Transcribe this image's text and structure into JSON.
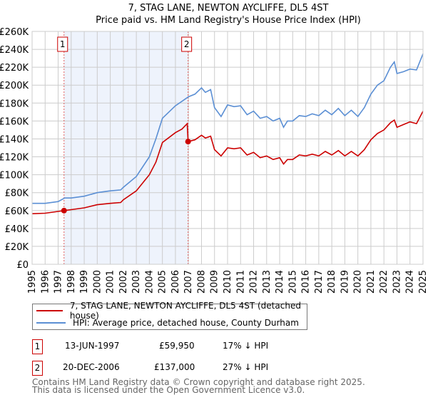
{
  "chart_data": {
    "type": "line",
    "title": "7, STAG LANE, NEWTON AYCLIFFE, DL5 4ST",
    "subtitle": "Price paid vs. HM Land Registry's House Price Index (HPI)",
    "xlabel": "",
    "ylabel": "",
    "xlim": [
      1995,
      2025
    ],
    "ylim": [
      0,
      260000
    ],
    "grid": true,
    "x_ticks": [
      "1995",
      "1996",
      "1997",
      "1998",
      "1999",
      "2000",
      "2001",
      "2002",
      "2003",
      "2004",
      "2005",
      "2006",
      "2007",
      "2008",
      "2009",
      "2010",
      "2011",
      "2012",
      "2013",
      "2014",
      "2015",
      "2016",
      "2017",
      "2018",
      "2019",
      "2020",
      "2021",
      "2022",
      "2023",
      "2024",
      "2025"
    ],
    "y_ticks": [
      {
        "value": 0,
        "label": "£0"
      },
      {
        "value": 20000,
        "label": "£20K"
      },
      {
        "value": 40000,
        "label": "£40K"
      },
      {
        "value": 60000,
        "label": "£60K"
      },
      {
        "value": 80000,
        "label": "£80K"
      },
      {
        "value": 100000,
        "label": "£100K"
      },
      {
        "value": 120000,
        "label": "£120K"
      },
      {
        "value": 140000,
        "label": "£140K"
      },
      {
        "value": 160000,
        "label": "£160K"
      },
      {
        "value": 180000,
        "label": "£180K"
      },
      {
        "value": 200000,
        "label": "£200K"
      },
      {
        "value": 220000,
        "label": "£220K"
      },
      {
        "value": 240000,
        "label": "£240K"
      },
      {
        "value": 260000,
        "label": "£260K"
      }
    ],
    "series": [
      {
        "name": "7, STAG LANE, NEWTON AYCLIFFE, DL5 4ST (detached house)",
        "color": "#cc0000",
        "x": [
          1995,
          1996,
          1997,
          1997.45,
          1998,
          1999,
          2000,
          2001,
          2001.8,
          2002,
          2003,
          2004,
          2004.5,
          2005,
          2006,
          2006.5,
          2006.9,
          2006.97,
          2007.5,
          2008,
          2008.3,
          2008.7,
          2009,
          2009.5,
          2010,
          2010.5,
          2011,
          2011.5,
          2012,
          2012.5,
          2013,
          2013.5,
          2014,
          2014.3,
          2014.6,
          2015,
          2015.5,
          2016,
          2016.5,
          2017,
          2017.5,
          2018,
          2018.5,
          2019,
          2019.5,
          2020,
          2020.5,
          2021,
          2021.5,
          2022,
          2022.5,
          2022.8,
          2023,
          2023.5,
          2024,
          2024.5,
          2025
        ],
        "values": [
          56500,
          57000,
          59000,
          59950,
          61000,
          63000,
          66500,
          68000,
          69000,
          72000,
          82000,
          100000,
          114000,
          136000,
          147000,
          151000,
          157000,
          137000,
          139000,
          144000,
          141000,
          143000,
          128000,
          121000,
          130000,
          129000,
          130000,
          122000,
          125000,
          119000,
          121000,
          117000,
          119000,
          112000,
          117000,
          117000,
          122000,
          121000,
          123000,
          121000,
          126000,
          122000,
          127000,
          121000,
          126000,
          121000,
          128000,
          139000,
          146000,
          150000,
          158000,
          161000,
          153000,
          156000,
          159000,
          157000,
          171000
        ]
      },
      {
        "name": "HPI: Average price, detached house, County Durham",
        "color": "#5b8fd4",
        "x": [
          1995,
          1996,
          1997,
          1997.5,
          1998,
          1999,
          2000,
          2001,
          2001.8,
          2002,
          2003,
          2004,
          2004.5,
          2005,
          2006,
          2006.5,
          2007,
          2007.5,
          2008,
          2008.3,
          2008.7,
          2009,
          2009.5,
          2010,
          2010.5,
          2011,
          2011.5,
          2012,
          2012.5,
          2013,
          2013.5,
          2014,
          2014.3,
          2014.6,
          2015,
          2015.5,
          2016,
          2016.5,
          2017,
          2017.5,
          2018,
          2018.5,
          2019,
          2019.5,
          2020,
          2020.5,
          2021,
          2021.5,
          2022,
          2022.5,
          2022.8,
          2023,
          2023.5,
          2024,
          2024.5,
          2025
        ],
        "values": [
          68000,
          68000,
          70000,
          74000,
          74000,
          76000,
          80000,
          82000,
          83000,
          86000,
          98000,
          120000,
          140000,
          163000,
          177000,
          182000,
          187000,
          190000,
          197000,
          192000,
          195000,
          175000,
          165000,
          178000,
          176000,
          177000,
          167000,
          171000,
          163000,
          165000,
          160000,
          163000,
          153000,
          160000,
          160000,
          166000,
          165000,
          168000,
          166000,
          172000,
          167000,
          174000,
          166000,
          172000,
          165000,
          175000,
          190000,
          200000,
          205000,
          220000,
          226000,
          213000,
          215000,
          218000,
          217000,
          235000
        ]
      }
    ],
    "sales": [
      {
        "id": "1",
        "x": 1997.45,
        "value": 59950,
        "date": "13-JUN-1997",
        "price": "£59,950",
        "hpi": "17% ↓ HPI"
      },
      {
        "id": "2",
        "x": 2006.97,
        "value": 137000,
        "date": "20-DEC-2006",
        "price": "£137,000",
        "hpi": "27% ↓ HPI"
      }
    ],
    "legend": [
      "7, STAG LANE, NEWTON AYCLIFFE, DL5 4ST (detached house)",
      "HPI: Average price, detached house, County Durham"
    ],
    "legend_placement": "bottom"
  },
  "footer": {
    "line1": "Contains HM Land Registry data © Crown copyright and database right 2025.",
    "line2": "This data is licensed under the Open Government Licence v3.0."
  }
}
